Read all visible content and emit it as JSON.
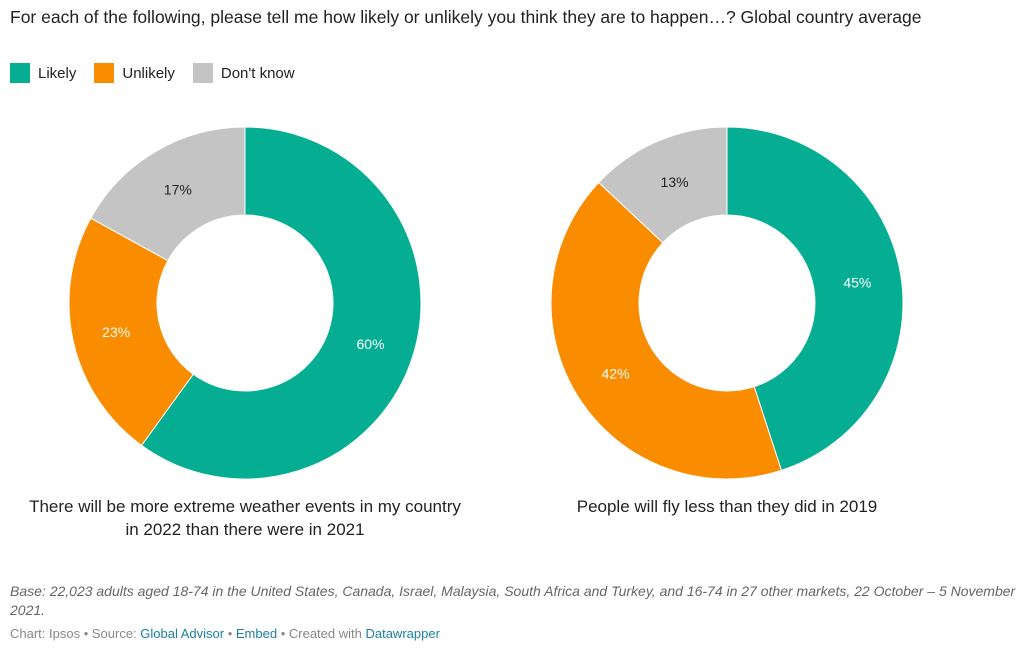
{
  "header": {
    "title": "For each of the following, please tell me how likely or unlikely you think they are to happen…? Global country average"
  },
  "legend": [
    {
      "label": "Likely",
      "color": "#05ae92"
    },
    {
      "label": "Unlikely",
      "color": "#fa8c00"
    },
    {
      "label": "Don't know",
      "color": "#c4c4c4"
    }
  ],
  "chart_data": [
    {
      "type": "pie",
      "variant": "donut",
      "title": "There will be more extreme weather events in my country in 2022 than there were in 2021",
      "categories": [
        "Likely",
        "Unlikely",
        "Don't know"
      ],
      "values": [
        60,
        23,
        17
      ],
      "labels": [
        "60%",
        "23%",
        "17%"
      ],
      "colors": [
        "#05ae92",
        "#fa8c00",
        "#c4c4c4"
      ],
      "unit": "%"
    },
    {
      "type": "pie",
      "variant": "donut",
      "title": "People will fly less than they did in 2019",
      "categories": [
        "Likely",
        "Unlikely",
        "Don't know"
      ],
      "values": [
        45,
        42,
        13
      ],
      "labels": [
        "45%",
        "42%",
        "13%"
      ],
      "colors": [
        "#05ae92",
        "#fa8c00",
        "#c4c4c4"
      ],
      "unit": "%"
    }
  ],
  "charts": [
    {
      "label": "There will be more extreme weather events in my country in 2022 than there were in 2021"
    },
    {
      "label": "People will fly less than they did in 2019"
    }
  ],
  "footer": {
    "notes": "Base: 22,023 adults aged 18-74 in the United States, Canada, Israel, Malaysia, South Africa and Turkey, and 16-74 in 27 other markets, 22 October – 5 November 2021.",
    "chart_prefix": "Chart: Ipsos • Source: ",
    "source_link": "Global Advisor",
    "sep1": " • ",
    "embed_link": "Embed",
    "sep2": " • Created with ",
    "datawrapper_link": "Datawrapper"
  }
}
